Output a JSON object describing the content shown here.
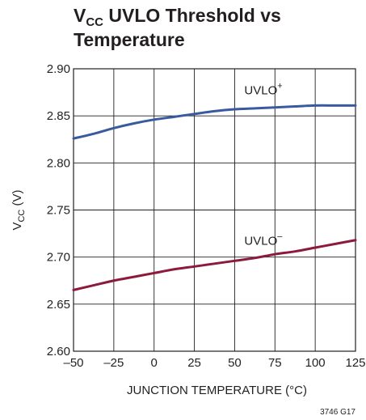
{
  "chart_data": {
    "type": "line",
    "title_main": "V",
    "title_sub": "CC",
    "title_rest": " UVLO Threshold vs",
    "title_line2": "Temperature",
    "xlabel": "JUNCTION TEMPERATURE (°C)",
    "ylabel_main": "V",
    "ylabel_sub": "CC",
    "ylabel_rest": " (V)",
    "xlim": [
      -50,
      125
    ],
    "ylim": [
      2.6,
      2.9
    ],
    "x_ticks": [
      -50,
      -25,
      0,
      25,
      50,
      75,
      100,
      125
    ],
    "x_tick_labels": [
      "–50",
      "–25",
      "0",
      "25",
      "50",
      "75",
      "100",
      "125"
    ],
    "y_ticks": [
      2.6,
      2.65,
      2.7,
      2.75,
      2.8,
      2.85,
      2.9
    ],
    "y_tick_labels": [
      "2.60",
      "2.65",
      "2.70",
      "2.75",
      "2.80",
      "2.85",
      "2.90"
    ],
    "grid": true,
    "series": [
      {
        "label_main": "UVLO",
        "label_sup": "+",
        "color": "#3a5aa0",
        "x": [
          -50,
          -37.5,
          -25,
          -12.5,
          0,
          12.5,
          25,
          37.5,
          50,
          62.5,
          75,
          87.5,
          100,
          112.5,
          125
        ],
        "y": [
          2.826,
          2.831,
          2.837,
          2.842,
          2.846,
          2.849,
          2.852,
          2.855,
          2.857,
          2.858,
          2.859,
          2.86,
          2.861,
          2.861,
          2.861
        ]
      },
      {
        "label_main": "UVLO",
        "label_sup": "–",
        "color": "#8b1a3c",
        "x": [
          -50,
          -37.5,
          -25,
          -12.5,
          0,
          12.5,
          25,
          37.5,
          50,
          62.5,
          75,
          87.5,
          100,
          112.5,
          125
        ],
        "y": [
          2.665,
          2.67,
          2.675,
          2.679,
          2.683,
          2.687,
          2.69,
          2.693,
          2.696,
          2.699,
          2.703,
          2.706,
          2.71,
          2.714,
          2.718
        ]
      }
    ],
    "figure_number": "3746 G17"
  }
}
